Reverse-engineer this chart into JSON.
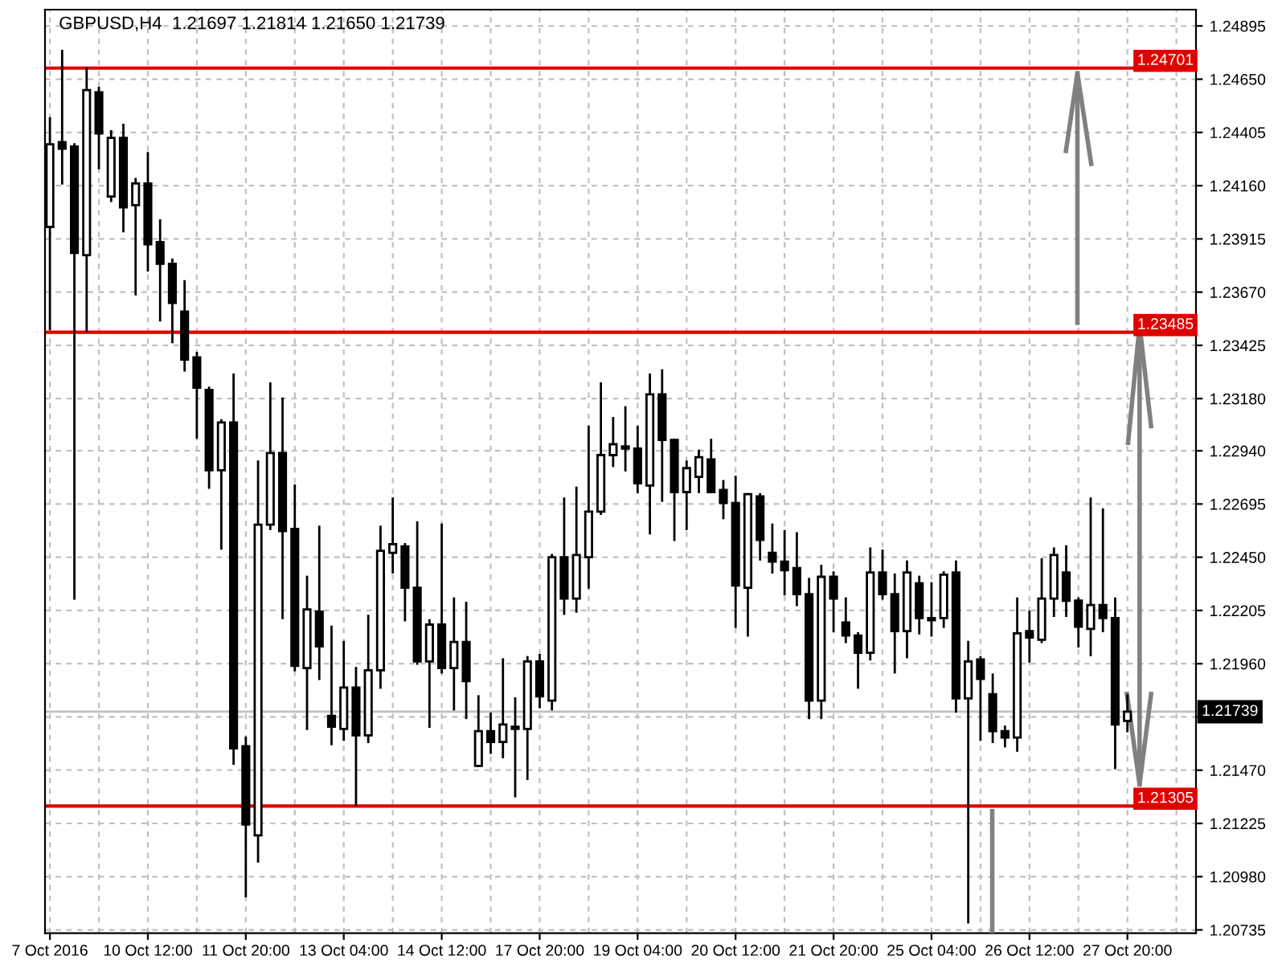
{
  "chart_data": {
    "type": "candlestick",
    "title": "GBPUSD,H4  1.21697 1.21814 1.21650 1.21739",
    "categories": [
      "7 Oct 2016",
      null,
      null,
      null,
      null,
      null,
      null,
      null,
      "10 Oct 12:00",
      null,
      null,
      null,
      null,
      null,
      null,
      null,
      "11 Oct 20:00",
      null,
      null,
      null,
      null,
      null,
      null,
      null,
      "13 Oct 04:00",
      null,
      null,
      null,
      null,
      null,
      null,
      null,
      "14 Oct 12:00",
      null,
      null,
      null,
      null,
      null,
      null,
      null,
      "17 Oct 20:00",
      null,
      null,
      null,
      null,
      null,
      null,
      null,
      "19 Oct 04:00",
      null,
      null,
      null,
      null,
      null,
      null,
      null,
      "20 Oct 12:00",
      null,
      null,
      null,
      null,
      null,
      null,
      null,
      "21 Oct 20:00",
      null,
      null,
      null,
      null,
      null,
      null,
      null,
      "25 Oct 04:00",
      null,
      null,
      null,
      null,
      null,
      null,
      null,
      "26 Oct 12:00",
      null,
      null,
      null,
      null,
      null,
      null,
      null,
      "27 Oct 20:00"
    ],
    "ohlc": [
      [
        1.2397,
        1.2447,
        1.235,
        1.2435
      ],
      [
        1.2436,
        1.2478,
        1.2417,
        1.2433
      ],
      [
        1.2434,
        1.2435,
        1.2226,
        1.2385
      ],
      [
        1.2384,
        1.247,
        1.2349,
        1.246
      ],
      [
        1.2459,
        1.2461,
        1.2424,
        1.244
      ],
      [
        1.2411,
        1.2441,
        1.2409,
        1.2438
      ],
      [
        1.2438,
        1.2444,
        1.2395,
        1.2406
      ],
      [
        1.2407,
        1.2419,
        1.2366,
        1.2417
      ],
      [
        1.2417,
        1.2431,
        1.2377,
        1.2389
      ],
      [
        1.239,
        1.24,
        1.2354,
        1.238
      ],
      [
        1.238,
        1.2382,
        1.2344,
        1.2362
      ],
      [
        1.2358,
        1.2372,
        1.2331,
        1.2336
      ],
      [
        1.2337,
        1.2339,
        1.23,
        1.2323
      ],
      [
        1.2322,
        1.2323,
        1.2277,
        1.2285
      ],
      [
        1.2285,
        1.2308,
        1.2249,
        1.2307
      ],
      [
        1.2307,
        1.2329,
        1.215,
        1.2157
      ],
      [
        1.2158,
        1.2162,
        1.2089,
        1.2122
      ],
      [
        1.2117,
        1.2289,
        1.2105,
        1.226
      ],
      [
        1.226,
        1.2325,
        1.2258,
        1.2293
      ],
      [
        1.2293,
        1.2318,
        1.2217,
        1.2257
      ],
      [
        1.2258,
        1.2278,
        1.2193,
        1.2195
      ],
      [
        1.2194,
        1.2236,
        1.2166,
        1.2221
      ],
      [
        1.222,
        1.2259,
        1.2189,
        1.2204
      ],
      [
        1.2172,
        1.2213,
        1.2159,
        1.2167
      ],
      [
        1.2166,
        1.2206,
        1.2161,
        1.2185
      ],
      [
        1.2185,
        1.2194,
        1.2131,
        1.2163
      ],
      [
        1.2163,
        1.2218,
        1.216,
        1.2193
      ],
      [
        1.2193,
        1.2259,
        1.2185,
        1.2248
      ],
      [
        1.2247,
        1.2272,
        1.2238,
        1.2251
      ],
      [
        1.225,
        1.2251,
        1.2216,
        1.2231
      ],
      [
        1.2231,
        1.2261,
        1.2196,
        1.2197
      ],
      [
        1.2197,
        1.2216,
        1.2167,
        1.2214
      ],
      [
        1.2214,
        1.226,
        1.2192,
        1.2194
      ],
      [
        1.2194,
        1.2226,
        1.2175,
        1.2206
      ],
      [
        1.2206,
        1.2224,
        1.2171,
        1.2188
      ],
      [
        1.2149,
        1.2181,
        1.2149,
        1.2165
      ],
      [
        1.2165,
        1.2173,
        1.2155,
        1.216
      ],
      [
        1.216,
        1.2198,
        1.2153,
        1.2168
      ],
      [
        1.2167,
        1.218,
        1.2135,
        1.2166
      ],
      [
        1.2166,
        1.2199,
        1.2143,
        1.2197
      ],
      [
        1.2197,
        1.22,
        1.2176,
        1.2181
      ],
      [
        1.2179,
        1.2246,
        1.2175,
        1.2245
      ],
      [
        1.2245,
        1.2272,
        1.2219,
        1.2226
      ],
      [
        1.2226,
        1.2277,
        1.222,
        1.2246
      ],
      [
        1.2245,
        1.2305,
        1.2231,
        1.2266
      ],
      [
        1.2266,
        1.2325,
        1.2265,
        1.2292
      ],
      [
        1.2292,
        1.2309,
        1.2287,
        1.2297
      ],
      [
        1.2296,
        1.2314,
        1.2285,
        1.2295
      ],
      [
        1.2295,
        1.2305,
        1.2275,
        1.2279
      ],
      [
        1.2278,
        1.2329,
        1.2256,
        1.232
      ],
      [
        1.232,
        1.2331,
        1.2271,
        1.2299
      ],
      [
        1.2299,
        1.2299,
        1.2253,
        1.2275
      ],
      [
        1.2275,
        1.2289,
        1.2258,
        1.2286
      ],
      [
        1.2282,
        1.2294,
        1.2275,
        1.2291
      ],
      [
        1.229,
        1.2299,
        1.2275,
        1.2275
      ],
      [
        1.2276,
        1.228,
        1.2263,
        1.227
      ],
      [
        1.227,
        1.2282,
        1.2213,
        1.2232
      ],
      [
        1.2231,
        1.2274,
        1.2209,
        1.2274
      ],
      [
        1.2273,
        1.2274,
        1.2244,
        1.2253
      ],
      [
        1.2247,
        1.226,
        1.2238,
        1.2243
      ],
      [
        1.2243,
        1.2257,
        1.2228,
        1.2239
      ],
      [
        1.224,
        1.2256,
        1.2223,
        1.2228
      ],
      [
        1.2228,
        1.2235,
        1.2171,
        1.2179
      ],
      [
        1.2179,
        1.2241,
        1.2171,
        1.2236
      ],
      [
        1.2236,
        1.2238,
        1.2211,
        1.2226
      ],
      [
        1.2215,
        1.2226,
        1.2206,
        1.2209
      ],
      [
        1.2209,
        1.221,
        1.2185,
        1.2201
      ],
      [
        1.2201,
        1.2249,
        1.2198,
        1.2238
      ],
      [
        1.2238,
        1.2248,
        1.2226,
        1.2228
      ],
      [
        1.2228,
        1.2237,
        1.2192,
        1.2211
      ],
      [
        1.2211,
        1.2243,
        1.2199,
        1.2238
      ],
      [
        1.2233,
        1.2236,
        1.221,
        1.2217
      ],
      [
        1.2217,
        1.2233,
        1.2209,
        1.2216
      ],
      [
        1.2217,
        1.2238,
        1.2213,
        1.2237
      ],
      [
        1.2238,
        1.2243,
        1.2174,
        1.218
      ],
      [
        1.218,
        1.2206,
        1.2077,
        1.2197
      ],
      [
        1.2198,
        1.2199,
        1.2161,
        1.2189
      ],
      [
        1.2182,
        1.2191,
        1.216,
        1.2165
      ],
      [
        1.2165,
        1.2167,
        1.2158,
        1.2162
      ],
      [
        1.2162,
        1.2226,
        1.2156,
        1.221
      ],
      [
        1.2211,
        1.222,
        1.2197,
        1.2208
      ],
      [
        1.2207,
        1.2244,
        1.2206,
        1.2226
      ],
      [
        1.2226,
        1.2249,
        1.2218,
        1.2246
      ],
      [
        1.2238,
        1.225,
        1.2218,
        1.2225
      ],
      [
        1.2225,
        1.2226,
        1.2204,
        1.2213
      ],
      [
        1.2212,
        1.2272,
        1.22,
        1.2223
      ],
      [
        1.2223,
        1.2267,
        1.2211,
        1.2217
      ],
      [
        1.2217,
        1.2226,
        1.2148,
        1.2168
      ],
      [
        1.21697,
        1.21814,
        1.2165,
        1.21739
      ]
    ],
    "ylim": [
      1.2072,
      1.2497
    ],
    "yticks": [
      1.24895,
      {
        "value": 1.2465,
        "label": "1.24650"
      },
      1.24405,
      {
        "value": 1.2416,
        "label": "1.24160"
      },
      1.23915,
      {
        "value": 1.2367,
        "label": "1.23670"
      },
      1.23425,
      {
        "value": 1.2318,
        "label": "1.23180"
      },
      {
        "value": 1.2294,
        "label": "1.22940"
      },
      1.22695,
      {
        "value": 1.2245,
        "label": "1.22450"
      },
      1.22205,
      {
        "value": 1.2196,
        "label": "1.21960"
      },
      {
        "value": 1.21715,
        "label": null
      },
      {
        "value": 1.2147,
        "label": "1.21470"
      },
      1.21225,
      {
        "value": 1.2098,
        "label": "1.20980"
      },
      1.20735
    ],
    "grid": true,
    "ref_lines": [
      {
        "axis": "y",
        "value": 1.24701,
        "label": "1.24701",
        "color": "#e00000"
      },
      {
        "axis": "y",
        "value": 1.23485,
        "label": "1.23485",
        "color": "#e00000"
      },
      {
        "axis": "y",
        "value": 1.21305,
        "label": "1.21305",
        "color": "#e00000"
      },
      {
        "axis": "y",
        "value": 1.21739,
        "label": "1.21739",
        "color": "#c0c0c0"
      }
    ]
  }
}
